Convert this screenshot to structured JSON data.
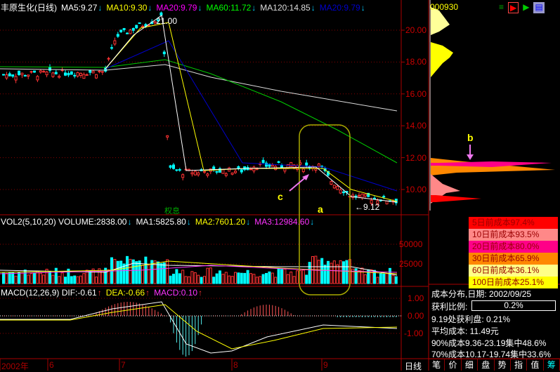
{
  "header": {
    "title": "丰原生化(日线)",
    "ma": [
      {
        "label": "MA5:9.27",
        "color": "#ffffff"
      },
      {
        "label": "MA10:9.30",
        "color": "#ffff00"
      },
      {
        "label": "MA20:9.79",
        "color": "#ff00ff"
      },
      {
        "label": "MA60:11.72",
        "color": "#00ff00"
      },
      {
        "label": "MA120:14.85",
        "color": "#dddddd"
      },
      {
        "label": "MA20:9.79",
        "color": "#0000cc"
      }
    ]
  },
  "price_axis": [
    "20.00",
    "18.00",
    "16.00",
    "14.00",
    "12.00",
    "10.00"
  ],
  "annotations": {
    "high": "21.00",
    "low": "9.12",
    "quanxi": "权息",
    "a": "a",
    "b": "b",
    "c": "c"
  },
  "volume": {
    "legend": [
      {
        "label": "VOL2(5,10,20) VOLUME:2838.00",
        "color": "#ffffff"
      },
      {
        "label": "MA1:5825.80",
        "color": "#ffffff"
      },
      {
        "label": "MA2:7601.20",
        "color": "#ffff00"
      },
      {
        "label": "MA3:12984.60",
        "color": "#ff33ff"
      }
    ],
    "axis": [
      "50000",
      "25000"
    ]
  },
  "macd": {
    "legend": [
      {
        "label": "MACD(12,26,9) DIF:-0.61",
        "color": "#ffffff"
      },
      {
        "label": "DEA:-0.66",
        "color": "#ffff00"
      },
      {
        "label": "MACD:0.10",
        "color": "#ff33ff"
      }
    ],
    "axis": [
      "1.00",
      "0.00",
      "-1.00"
    ]
  },
  "date_axis": [
    "2002年",
    "6",
    "7",
    "8",
    "9"
  ],
  "period_label": "日线",
  "stock_code": "000930",
  "cost_boxes": [
    {
      "label": "5日前成本97.4%",
      "color": "#ff0000"
    },
    {
      "label": "10日前成本93.5%",
      "color": "#ff8888"
    },
    {
      "label": "20日前成本80.0%",
      "color": "#ff0088"
    },
    {
      "label": "30日前成本65.9%",
      "color": "#ff8800"
    },
    {
      "label": "60日前成本36.1%",
      "color": "#ffff88"
    },
    {
      "label": "100日前成本25.1%",
      "color": "#ffff00"
    }
  ],
  "info": {
    "date_line": "成本分布,日期: 2002/09/25",
    "profit_label": "获利比例:",
    "profit_value": "0.2%",
    "profit_ratio": 0.002,
    "line1": "9.19处获利盘: 0.21%",
    "line2": "平均成本: 11.49元",
    "line3": "90%成本9.36-23.19集中48.6%",
    "line4": "70%成本10.17-19.74集中33.6%"
  },
  "tabs": [
    "笔",
    "价",
    "细",
    "盘",
    "势",
    "指",
    "值",
    "筹"
  ],
  "active_tab": "筹"
}
